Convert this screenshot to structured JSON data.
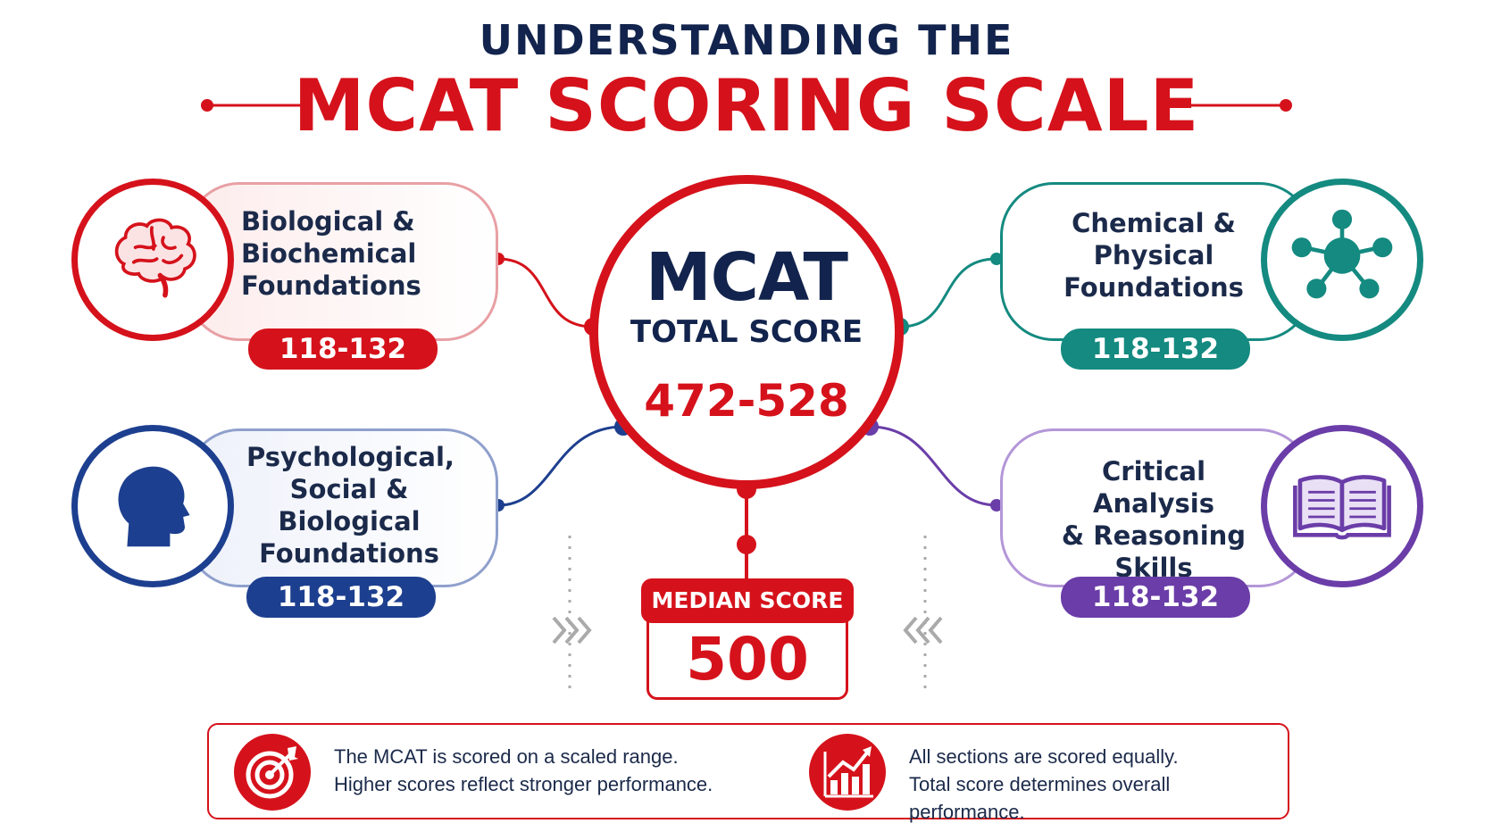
{
  "title": {
    "line1": "UNDERSTANDING THE",
    "line2": "MCAT SCORING SCALE"
  },
  "center": {
    "name": "MCAT",
    "subtitle": "TOTAL SCORE",
    "range": "472-528"
  },
  "sections": [
    {
      "label": "Biological &\nBiochemical\nFoundations",
      "range": "118-132",
      "icon": "brain-icon",
      "color": "#d5121b"
    },
    {
      "label": "Chemical &\nPhysical\nFoundations",
      "range": "118-132",
      "icon": "molecule-icon",
      "color": "#148a80"
    },
    {
      "label": "Psychological,\nSocial &\nBiological\nFoundations",
      "range": "118-132",
      "icon": "head-profile-icon",
      "color": "#1d3f8f"
    },
    {
      "label": "Critical Analysis\n& Reasoning\nSkills",
      "range": "118-132",
      "icon": "book-icon",
      "color": "#6a3da8"
    }
  ],
  "median": {
    "label": "MEDIAN SCORE",
    "value": "500"
  },
  "notes": [
    {
      "line1": "The MCAT is scored on a scaled range.",
      "line2": "Higher scores reflect stronger performance.",
      "icon": "target-icon"
    },
    {
      "line1": "All sections are scored equally.",
      "line2": "Total score determines overall performance.",
      "icon": "growth-chart-icon"
    }
  ],
  "colors": {
    "red": "#d5121b",
    "navy": "#12244d",
    "teal": "#148a80",
    "blue": "#1d3f8f",
    "purple": "#6a3da8"
  }
}
